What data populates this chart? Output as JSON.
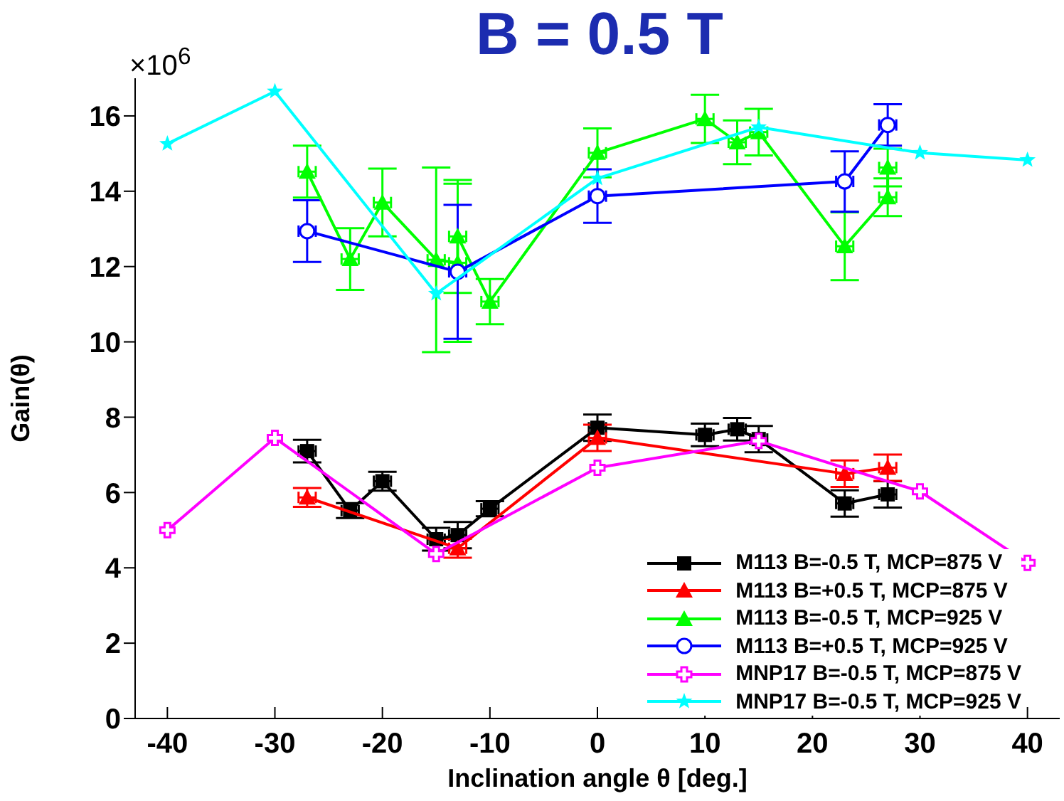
{
  "chart_data": {
    "type": "line",
    "title": "B = 0.5 T",
    "xlabel": "Inclination angle θ [deg.]",
    "ylabel": "Gain(θ)",
    "annotations": [
      "×10$^{6}$"
    ],
    "xlim": [
      -43,
      43
    ],
    "xticks": [
      -40,
      -30,
      -20,
      -10,
      0,
      10,
      20,
      30,
      40
    ],
    "ylim": [
      0,
      17
    ],
    "yticks": [
      0,
      2,
      4,
      6,
      8,
      10,
      12,
      14,
      16
    ],
    "grid": false,
    "legend": "bottom right",
    "line_style": "solid",
    "series": [
      {
        "name": "M113 B=-0.5 T, MCP=875 V",
        "color": "#000000",
        "marker": "square",
        "x": [
          -27,
          -23,
          -20,
          -15,
          -13,
          -10,
          0,
          10,
          13,
          15,
          23,
          27
        ],
        "values": [
          7.1,
          5.52,
          6.3,
          4.76,
          4.87,
          5.57,
          7.72,
          7.53,
          7.68,
          7.42,
          5.71,
          5.95
        ],
        "errors": [
          0.3,
          0.2,
          0.25,
          0.3,
          0.35,
          0.2,
          0.35,
          0.3,
          0.3,
          0.35,
          0.35,
          0.35
        ],
        "xerrors": [
          0.8,
          0.8,
          0.8,
          0.8,
          0.8,
          0.8,
          0.8,
          0.8,
          0.8,
          0.8,
          0.8,
          0.8
        ]
      },
      {
        "name": "M113 B=+0.5 T, MCP=875 V",
        "color": "#ff0000",
        "marker": "triangle",
        "x": [
          -27,
          -13,
          0,
          23,
          27
        ],
        "values": [
          5.87,
          4.52,
          7.45,
          6.5,
          6.66
        ],
        "errors": [
          0.25,
          0.25,
          0.35,
          0.35,
          0.35
        ],
        "xerrors": [
          0.8,
          0.8,
          0.8,
          0.8,
          0.8
        ]
      },
      {
        "name": "M113 B=-0.5 T, MCP=925 V",
        "color": "#00ff00",
        "marker": "triangle",
        "x": [
          -27,
          -23,
          -20,
          -15,
          -13,
          -13,
          -10,
          0,
          10,
          13,
          15,
          23,
          27,
          27
        ],
        "values": [
          14.52,
          12.2,
          13.7,
          12.18,
          12.1,
          12.8,
          11.07,
          15.02,
          15.92,
          15.3,
          15.57,
          12.54,
          13.84,
          14.63
        ],
        "errors": [
          0.69,
          0.82,
          0.9,
          2.45,
          2.1,
          1.5,
          0.6,
          0.65,
          0.64,
          0.58,
          0.62,
          0.9,
          0.5,
          0.5
        ],
        "xerrors": [
          0.8,
          0.8,
          0.8,
          0.8,
          0.8,
          0.8,
          0.8,
          0.8,
          0.8,
          0.8,
          0.8,
          0.8,
          0.8,
          0.8
        ]
      },
      {
        "name": "M113 B=+0.5 T, MCP=925 V",
        "color": "#0000ff",
        "marker": "circle",
        "x": [
          -27,
          -13,
          0,
          23,
          27
        ],
        "values": [
          12.94,
          11.86,
          13.87,
          14.26,
          15.76
        ],
        "errors": [
          0.82,
          1.78,
          0.71,
          0.8,
          0.55
        ],
        "xerrors": [
          0.8,
          0.8,
          0.8,
          0.8,
          0.8
        ]
      },
      {
        "name": "MNP17 B=-0.5 T, MCP=875 V",
        "color": "#ff00ff",
        "marker": "cross",
        "x": [
          -40,
          -30,
          -15,
          0,
          15,
          30,
          40
        ],
        "values": [
          5.0,
          7.45,
          4.37,
          6.66,
          7.37,
          6.03,
          4.13
        ]
      },
      {
        "name": "MNP17 B=-0.5 T, MCP=925 V",
        "color": "#00ffff",
        "marker": "star",
        "x": [
          -40,
          -30,
          -15,
          0,
          15,
          30,
          40
        ],
        "values": [
          15.26,
          16.65,
          11.28,
          14.34,
          15.7,
          15.02,
          14.83
        ]
      }
    ]
  }
}
